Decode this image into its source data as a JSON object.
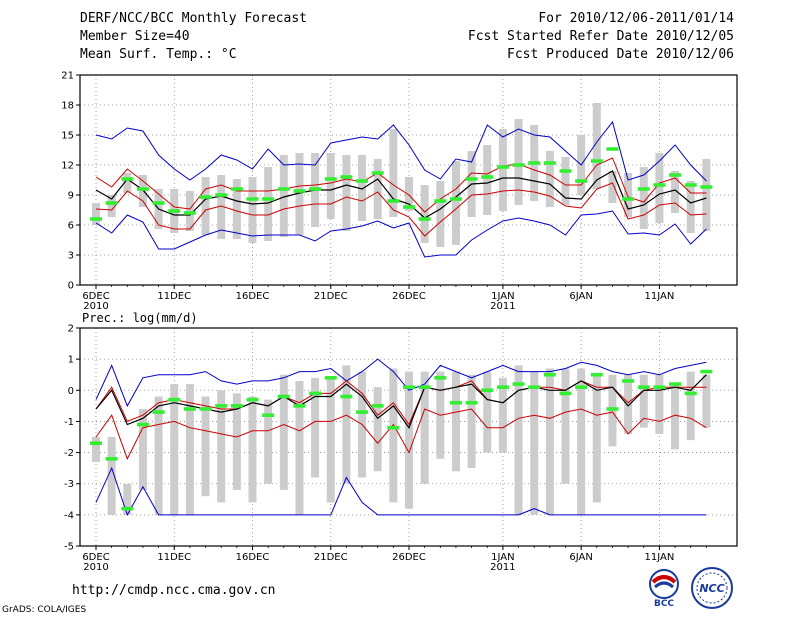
{
  "header": {
    "title": "DERF/NCC/BCC Monthly Forecast",
    "member": "Member Size=40",
    "variable": "Mean Surf. Temp.: °C",
    "period": "For 2010/12/06-2011/01/14",
    "refer": "Fcst Started Refer Date 2010/12/05",
    "produced": "Fcst Produced Date 2010/12/06"
  },
  "footer": {
    "url": "http://cmdp.ncc.cma.gov.cn",
    "credit": "GrADS: COLA/IGES",
    "logo_left": "BCC",
    "logo_right": "NCC"
  },
  "colors": {
    "envelope": "#0000cc",
    "spread": "#cc0000",
    "ensemble_mean": "#000000",
    "median": "#33ee33",
    "box": "#cccccc"
  },
  "chart_data": [
    {
      "type": "line",
      "title": "Mean Surf. Temp.: °C",
      "xlabel": "",
      "ylabel": "°C",
      "ylim": [
        0,
        21
      ],
      "yticks": [
        0,
        3,
        6,
        9,
        12,
        15,
        18,
        21
      ],
      "grid": true,
      "xticks": [
        {
          "day": 1,
          "label": "6DEC",
          "sub": "2010"
        },
        {
          "day": 6,
          "label": "11DEC",
          "sub": ""
        },
        {
          "day": 11,
          "label": "16DEC",
          "sub": ""
        },
        {
          "day": 16,
          "label": "21DEC",
          "sub": ""
        },
        {
          "day": 21,
          "label": "26DEC",
          "sub": ""
        },
        {
          "day": 27,
          "label": "1JAN",
          "sub": "2011"
        },
        {
          "day": 32,
          "label": "6JAN",
          "sub": ""
        },
        {
          "day": 37,
          "label": "11JAN",
          "sub": ""
        }
      ],
      "days": [
        1,
        2,
        3,
        4,
        5,
        6,
        7,
        8,
        9,
        10,
        11,
        12,
        13,
        14,
        15,
        16,
        17,
        18,
        19,
        20,
        21,
        22,
        23,
        24,
        25,
        26,
        27,
        28,
        29,
        30,
        31,
        32,
        33,
        34,
        35,
        36,
        37,
        38,
        39,
        40
      ],
      "series": [
        {
          "name": "max",
          "color": "#0000cc",
          "values": [
            15.0,
            14.6,
            15.7,
            15.4,
            13.0,
            11.6,
            10.5,
            11.6,
            13.0,
            12.5,
            11.6,
            13.6,
            12.0,
            12.1,
            12.0,
            14.2,
            14.5,
            14.8,
            14.6,
            16.0,
            14.0,
            11.5,
            10.6,
            12.6,
            12.3,
            16.0,
            14.8,
            15.6,
            15.0,
            14.8,
            13.4,
            12.0,
            14.3,
            16.3,
            10.5,
            11.0,
            12.4,
            14.0,
            12.0,
            10.4
          ]
        },
        {
          "name": "upper",
          "color": "#cc0000",
          "values": [
            10.8,
            9.8,
            11.6,
            10.4,
            9.1,
            7.8,
            7.6,
            9.6,
            10.0,
            9.4,
            9.4,
            9.4,
            9.6,
            9.9,
            10.0,
            10.2,
            10.6,
            10.3,
            11.2,
            10.0,
            9.0,
            7.3,
            8.6,
            9.6,
            11.2,
            11.1,
            11.9,
            12.1,
            11.5,
            11.0,
            10.0,
            10.0,
            12.0,
            12.7,
            8.8,
            8.3,
            10.2,
            10.7,
            9.2,
            9.2
          ]
        },
        {
          "name": "ensemble mean",
          "color": "#000000",
          "values": [
            9.5,
            8.6,
            10.6,
            9.5,
            7.6,
            7.0,
            7.0,
            8.6,
            8.9,
            8.4,
            8.1,
            8.2,
            8.8,
            9.2,
            9.5,
            9.5,
            10.0,
            9.6,
            10.6,
            8.6,
            8.1,
            6.7,
            7.6,
            8.8,
            10.1,
            10.2,
            10.7,
            10.7,
            10.4,
            10.1,
            8.7,
            8.6,
            10.5,
            11.4,
            7.6,
            8.0,
            9.1,
            9.5,
            8.2,
            8.7
          ]
        },
        {
          "name": "lower",
          "color": "#cc0000",
          "values": [
            7.6,
            7.5,
            9.4,
            8.4,
            6.0,
            5.6,
            5.6,
            7.5,
            7.9,
            7.4,
            7.0,
            7.0,
            7.6,
            7.9,
            8.1,
            8.1,
            8.8,
            8.4,
            9.3,
            7.5,
            6.8,
            4.9,
            6.3,
            7.6,
            9.0,
            9.1,
            9.4,
            9.5,
            9.3,
            8.9,
            7.9,
            7.7,
            9.6,
            10.2,
            6.6,
            7.0,
            8.0,
            8.2,
            7.0,
            7.1
          ]
        },
        {
          "name": "min",
          "color": "#0000cc",
          "values": [
            6.2,
            5.2,
            7.0,
            6.3,
            3.6,
            3.6,
            4.3,
            5.0,
            5.5,
            5.2,
            4.9,
            5.0,
            5.0,
            5.0,
            4.4,
            5.4,
            5.6,
            5.9,
            6.4,
            5.7,
            6.2,
            2.8,
            3.0,
            3.0,
            4.5,
            5.5,
            6.4,
            6.7,
            6.4,
            6.0,
            5.0,
            7.0,
            7.1,
            7.4,
            5.1,
            5.2,
            5.0,
            6.1,
            4.1,
            5.6
          ]
        }
      ],
      "boxes": {
        "low": [
          6.0,
          6.8,
          9.2,
          7.8,
          5.6,
          5.2,
          5.4,
          5.0,
          4.6,
          4.6,
          4.2,
          4.4,
          4.8,
          5.0,
          5.8,
          6.6,
          5.4,
          6.4,
          6.6,
          6.8,
          7.4,
          4.2,
          3.8,
          4.0,
          6.8,
          7.0,
          7.4,
          8.0,
          8.4,
          7.8,
          8.0,
          9.0,
          9.6,
          8.2,
          6.8,
          5.6,
          6.2,
          7.2,
          5.2,
          5.4
        ],
        "high": [
          8.2,
          9.0,
          11.2,
          11.0,
          9.6,
          9.6,
          9.4,
          10.8,
          11.0,
          10.6,
          10.8,
          11.8,
          13.0,
          13.2,
          13.2,
          13.2,
          13.0,
          13.0,
          12.6,
          15.6,
          10.8,
          10.0,
          10.4,
          12.4,
          13.4,
          14.0,
          15.6,
          16.6,
          16.0,
          13.4,
          12.8,
          15.0,
          18.2,
          11.4,
          11.2,
          11.8,
          13.2,
          11.4,
          10.4,
          12.6
        ],
        "median": [
          6.6,
          8.2,
          10.6,
          9.6,
          8.2,
          7.4,
          7.2,
          8.8,
          9.0,
          9.6,
          8.6,
          8.6,
          9.6,
          9.4,
          9.6,
          10.6,
          10.8,
          10.4,
          11.2,
          8.4,
          7.8,
          6.6,
          8.4,
          8.6,
          10.6,
          10.8,
          11.8,
          12.0,
          12.2,
          12.2,
          11.4,
          10.4,
          12.4,
          13.6,
          8.6,
          9.6,
          10.0,
          11.0,
          10.0,
          9.8
        ]
      }
    },
    {
      "type": "line",
      "title": "Prec.: log(mm/d)",
      "xlabel": "",
      "ylabel": "log(mm/d)",
      "ylim": [
        -5,
        2
      ],
      "yticks": [
        -5,
        -4,
        -3,
        -2,
        -1,
        0,
        1,
        2
      ],
      "grid": true,
      "xticks": [
        {
          "day": 1,
          "label": "6DEC",
          "sub": "2010"
        },
        {
          "day": 6,
          "label": "11DEC",
          "sub": ""
        },
        {
          "day": 11,
          "label": "16DEC",
          "sub": ""
        },
        {
          "day": 16,
          "label": "21DEC",
          "sub": ""
        },
        {
          "day": 21,
          "label": "26DEC",
          "sub": ""
        },
        {
          "day": 27,
          "label": "1JAN",
          "sub": "2011"
        },
        {
          "day": 32,
          "label": "6JAN",
          "sub": ""
        },
        {
          "day": 37,
          "label": "11JAN",
          "sub": ""
        }
      ],
      "days": [
        1,
        2,
        3,
        4,
        5,
        6,
        7,
        8,
        9,
        10,
        11,
        12,
        13,
        14,
        15,
        16,
        17,
        18,
        19,
        20,
        21,
        22,
        23,
        24,
        25,
        26,
        27,
        28,
        29,
        30,
        31,
        32,
        33,
        34,
        35,
        36,
        37,
        38,
        39,
        40
      ],
      "series": [
        {
          "name": "max",
          "color": "#0000cc",
          "values": [
            -0.3,
            0.8,
            -0.5,
            0.4,
            0.5,
            0.5,
            0.5,
            0.6,
            0.3,
            0.2,
            0.3,
            0.3,
            0.4,
            0.6,
            0.6,
            0.7,
            0.3,
            0.6,
            1.0,
            0.6,
            0.0,
            0.2,
            0.8,
            0.6,
            0.4,
            0.6,
            0.8,
            0.6,
            0.6,
            0.6,
            0.7,
            0.9,
            0.8,
            0.6,
            0.5,
            0.6,
            0.5,
            0.7,
            0.8,
            0.9
          ]
        },
        {
          "name": "upper",
          "color": "#cc0000",
          "values": [
            -0.6,
            0.1,
            -1.0,
            -0.8,
            -0.4,
            -0.3,
            -0.4,
            -0.5,
            -0.6,
            -0.6,
            -0.4,
            -0.5,
            -0.2,
            -0.4,
            -0.1,
            -0.1,
            0.3,
            -0.1,
            -0.8,
            -0.4,
            -1.1,
            0.1,
            0.0,
            0.1,
            0.3,
            -0.3,
            -0.4,
            0.0,
            0.1,
            0.1,
            0.0,
            0.3,
            0.1,
            0.1,
            -0.4,
            0.0,
            0.1,
            0.1,
            0.1,
            0.1
          ]
        },
        {
          "name": "ensemble mean",
          "color": "#000000",
          "values": [
            -0.6,
            0.0,
            -1.1,
            -0.9,
            -0.5,
            -0.4,
            -0.5,
            -0.6,
            -0.7,
            -0.6,
            -0.4,
            -0.5,
            -0.2,
            -0.5,
            -0.2,
            -0.2,
            0.2,
            -0.2,
            -0.9,
            -0.5,
            -1.2,
            0.1,
            0.0,
            0.1,
            0.2,
            -0.3,
            -0.4,
            0.0,
            0.1,
            0.0,
            0.0,
            0.3,
            0.0,
            0.1,
            -0.5,
            0.0,
            0.0,
            0.1,
            0.0,
            0.5
          ]
        },
        {
          "name": "lower",
          "color": "#cc0000",
          "values": [
            -1.5,
            -0.8,
            -2.2,
            -1.2,
            -1.1,
            -1.0,
            -1.2,
            -1.3,
            -1.4,
            -1.5,
            -1.3,
            -1.3,
            -1.1,
            -1.3,
            -1.0,
            -1.0,
            -0.8,
            -1.1,
            -1.7,
            -1.1,
            -2.0,
            -0.6,
            -0.8,
            -0.7,
            -0.6,
            -1.2,
            -1.2,
            -0.9,
            -0.8,
            -0.9,
            -0.7,
            -0.6,
            -0.8,
            -0.7,
            -1.4,
            -0.9,
            -1.0,
            -0.8,
            -0.9,
            -1.2
          ]
        },
        {
          "name": "min",
          "color": "#0000cc",
          "values": [
            -3.6,
            -2.5,
            -4.0,
            -3.1,
            -4.0,
            -4.0,
            -4.0,
            -4.0,
            -4.0,
            -4.0,
            -4.0,
            -4.0,
            -4.0,
            -4.0,
            -4.0,
            -4.0,
            -2.8,
            -3.6,
            -4.0,
            -4.0,
            -4.0,
            -4.0,
            -4.0,
            -4.0,
            -4.0,
            -4.0,
            -4.0,
            -4.0,
            -3.8,
            -4.0,
            -4.0,
            -4.0,
            -4.0,
            -4.0,
            -4.0,
            -4.0,
            -4.0,
            -4.0,
            -4.0,
            -4.0
          ]
        }
      ],
      "boxes": {
        "low": [
          -2.3,
          -4.0,
          -4.0,
          -3.2,
          -4.0,
          -4.0,
          -4.0,
          -3.4,
          -3.6,
          -3.2,
          -3.6,
          -3.0,
          -3.2,
          -4.0,
          -2.8,
          -3.6,
          -3.0,
          -2.8,
          -2.6,
          -3.6,
          -3.8,
          -3.0,
          -2.2,
          -2.6,
          -2.5,
          -2.0,
          -2.0,
          -4.0,
          -4.0,
          -4.0,
          -3.0,
          -4.0,
          -3.6,
          -1.8,
          -1.4,
          -1.2,
          -1.4,
          -1.9,
          -1.6,
          -1.2
        ],
        "high": [
          -1.5,
          -1.5,
          -3.0,
          -0.6,
          -0.2,
          0.2,
          0.2,
          -0.2,
          0.0,
          -0.1,
          -0.2,
          -0.3,
          0.5,
          0.3,
          0.4,
          0.4,
          0.8,
          0.6,
          0.1,
          0.7,
          0.6,
          0.6,
          0.6,
          0.6,
          0.5,
          0.6,
          0.4,
          0.8,
          0.6,
          0.7,
          0.7,
          0.7,
          0.5,
          0.5,
          0.5,
          0.5,
          0.5,
          0.2,
          0.6,
          0.5
        ],
        "median": [
          -1.7,
          -2.2,
          -3.8,
          -1.1,
          -0.7,
          -0.3,
          -0.6,
          -0.6,
          -0.5,
          -0.5,
          -0.3,
          -0.8,
          -0.2,
          -0.5,
          -0.1,
          0.4,
          -0.2,
          -0.7,
          -0.5,
          -1.2,
          0.1,
          0.1,
          0.4,
          -0.4,
          -0.4,
          0.0,
          0.1,
          0.2,
          0.1,
          0.5,
          -0.1,
          0.1,
          0.5,
          -0.6,
          0.3,
          0.1,
          0.1,
          0.2,
          -0.1,
          0.6
        ]
      }
    }
  ]
}
